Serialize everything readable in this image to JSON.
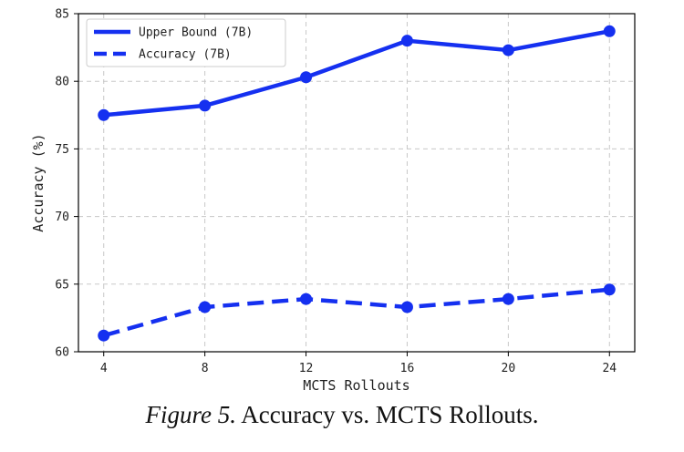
{
  "chart_data": {
    "type": "line",
    "x": [
      4,
      8,
      12,
      16,
      20,
      24
    ],
    "series": [
      {
        "name": "Upper Bound (7B)",
        "values": [
          77.5,
          78.2,
          80.3,
          83.0,
          82.3,
          83.7
        ],
        "style": "solid"
      },
      {
        "name": "Accuracy (7B)",
        "values": [
          61.2,
          63.3,
          63.9,
          63.3,
          63.9,
          64.6
        ],
        "style": "dashed"
      }
    ],
    "xlabel": "MCTS Rollouts",
    "ylabel": "Accuracy (%)",
    "xlim": [
      3,
      25
    ],
    "ylim": [
      60,
      85
    ],
    "xticks": [
      4,
      8,
      12,
      16,
      20,
      24
    ],
    "yticks": [
      60,
      65,
      70,
      75,
      80,
      85
    ],
    "grid": true,
    "legend_position": "top-left",
    "color": "#1530f0"
  },
  "caption": {
    "figure": "Figure 5.",
    "text": " Accuracy vs. MCTS Rollouts."
  }
}
